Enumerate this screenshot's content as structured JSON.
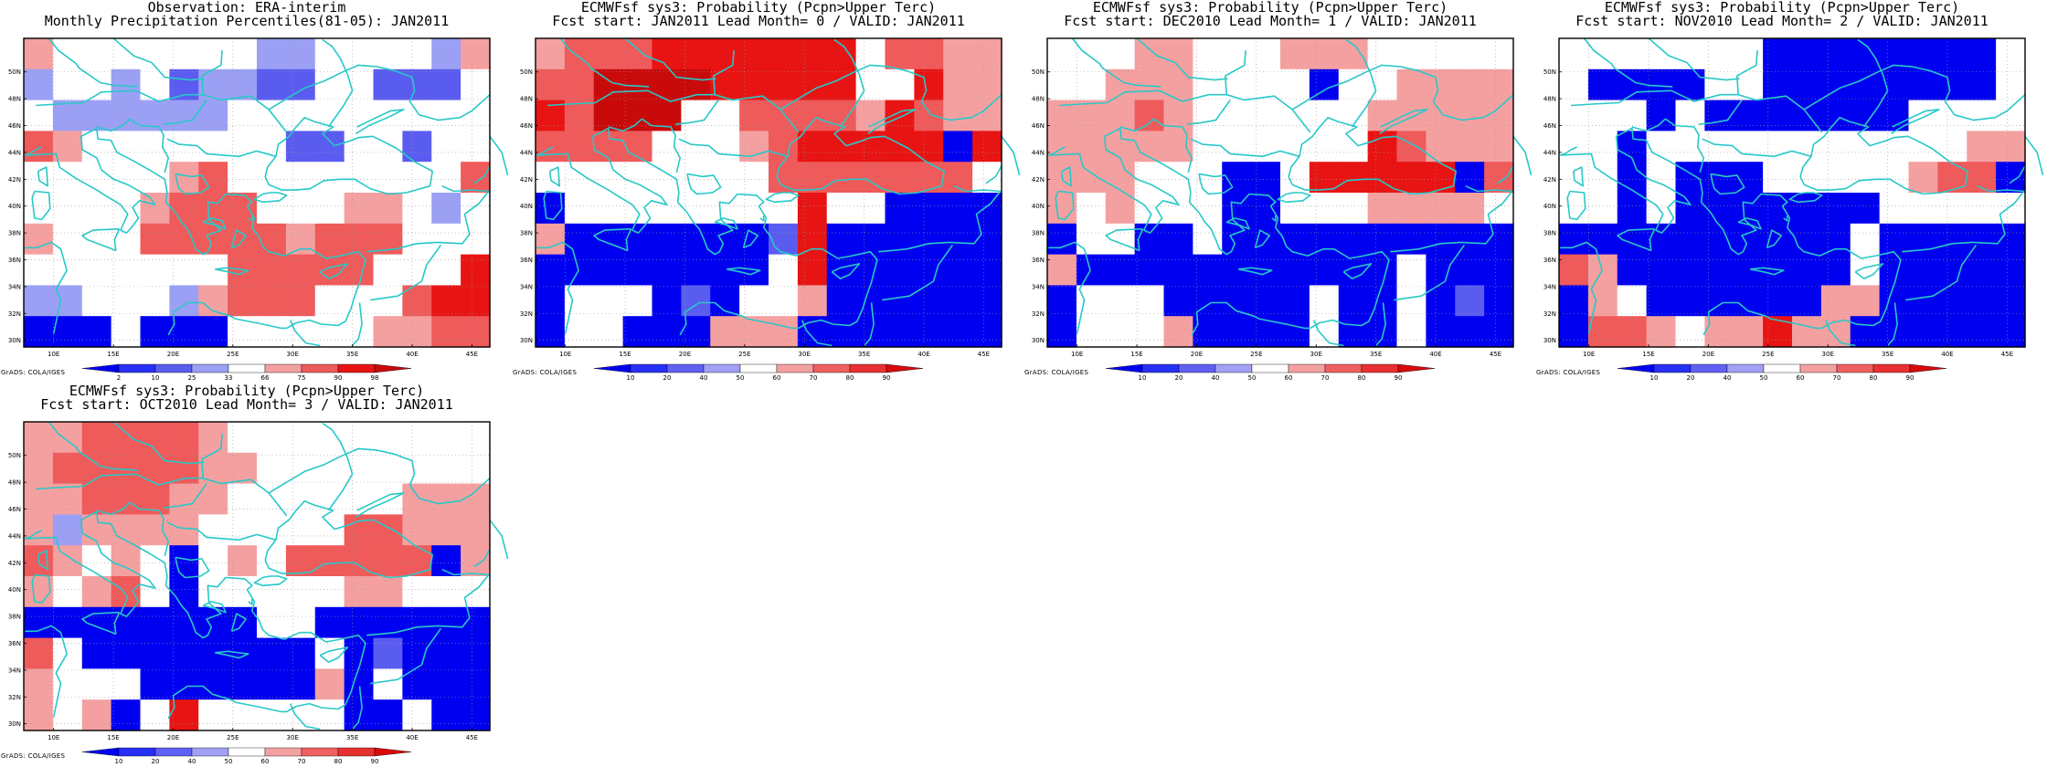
{
  "panels": [
    {
      "title_line1": "Observation: ERA-interim",
      "title_line2": "Monthly Precipitation Percentiles(81-05): JAN2011",
      "credit": "GrADS: COLA/IGES",
      "colorbar_ticks": [
        "2",
        "10",
        "25",
        "33",
        "66",
        "75",
        "90",
        "98"
      ],
      "grid": [
        [
          "r1",
          "w",
          "w",
          "w",
          "w",
          "w",
          "w",
          "w",
          "b1",
          "b1",
          "w",
          "w",
          "w",
          "w",
          "b1",
          "r1"
        ],
        [
          "b1",
          "w",
          "w",
          "b1",
          "w",
          "b2",
          "b1",
          "b1",
          "b2",
          "b2",
          "w",
          "w",
          "b2",
          "b2",
          "b2",
          "w"
        ],
        [
          "w",
          "b1",
          "b1",
          "b1",
          "b1",
          "b1",
          "b1",
          "w",
          "w",
          "w",
          "w",
          "w",
          "w",
          "w",
          "w",
          "w"
        ],
        [
          "r2",
          "r1",
          "w",
          "w",
          "w",
          "w",
          "w",
          "w",
          "w",
          "b2",
          "b2",
          "w",
          "w",
          "b2",
          "w",
          "w"
        ],
        [
          "w",
          "w",
          "w",
          "w",
          "w",
          "r1",
          "r2",
          "w",
          "w",
          "w",
          "w",
          "w",
          "w",
          "w",
          "w",
          "r2"
        ],
        [
          "w",
          "w",
          "w",
          "w",
          "r1",
          "r2",
          "r2",
          "r2",
          "w",
          "w",
          "w",
          "r1",
          "r1",
          "w",
          "b1",
          "w"
        ],
        [
          "r1",
          "w",
          "w",
          "w",
          "r2",
          "r2",
          "r2",
          "r2",
          "r2",
          "r1",
          "r2",
          "r2",
          "r2",
          "w",
          "w",
          "w"
        ],
        [
          "w",
          "w",
          "w",
          "w",
          "w",
          "w",
          "w",
          "r2",
          "r2",
          "r2",
          "r2",
          "r2",
          "w",
          "w",
          "w",
          "r3"
        ],
        [
          "b1",
          "b1",
          "w",
          "w",
          "w",
          "b1",
          "r1",
          "r2",
          "r2",
          "r2",
          "w",
          "w",
          "w",
          "r2",
          "r3",
          "r3"
        ],
        [
          "b3",
          "b3",
          "b3",
          "w",
          "b3",
          "b3",
          "b3",
          "w",
          "w",
          "w",
          "w",
          "w",
          "r1",
          "r1",
          "r2",
          "r2"
        ]
      ]
    },
    {
      "title_line1": "ECMWFsf sys3: Probability (Pcpn>Upper Terc)",
      "title_line2": "Fcst start: JAN2011   Lead Month= 0 / VALID: JAN2011",
      "credit": "GrADS: COLA/IGES",
      "colorbar_ticks": [
        "10",
        "20",
        "40",
        "50",
        "60",
        "70",
        "80",
        "90"
      ],
      "grid": [
        [
          "r1",
          "r2",
          "r2",
          "r2",
          "r3",
          "r3",
          "r3",
          "r3",
          "r3",
          "r3",
          "r3",
          "w",
          "r2",
          "r2",
          "r1",
          "r1"
        ],
        [
          "r2",
          "r2",
          "r4",
          "r4",
          "r4",
          "r4",
          "r3",
          "r3",
          "r3",
          "r3",
          "r3",
          "w",
          "w",
          "r3",
          "r1",
          "r1"
        ],
        [
          "r3",
          "r2",
          "r4",
          "r4",
          "r4",
          "w",
          "w",
          "r2",
          "r2",
          "r2",
          "r2",
          "r1",
          "r3",
          "r2",
          "r1",
          "r1"
        ],
        [
          "r2",
          "r2",
          "r2",
          "r2",
          "w",
          "w",
          "w",
          "r1",
          "r2",
          "r3",
          "r3",
          "r3",
          "r3",
          "r3",
          "b3",
          "r3"
        ],
        [
          "w",
          "w",
          "w",
          "w",
          "w",
          "w",
          "w",
          "w",
          "r2",
          "r2",
          "r2",
          "r2",
          "r2",
          "r2",
          "r2",
          "w"
        ],
        [
          "b3",
          "w",
          "w",
          "w",
          "w",
          "w",
          "w",
          "w",
          "w",
          "r3",
          "w",
          "w",
          "b3",
          "b3",
          "b3",
          "b3"
        ],
        [
          "r1",
          "b3",
          "b3",
          "b3",
          "b3",
          "b3",
          "b3",
          "b3",
          "b2",
          "r3",
          "b3",
          "b3",
          "b3",
          "b3",
          "b3",
          "b3"
        ],
        [
          "b3",
          "b3",
          "b3",
          "b3",
          "b3",
          "b3",
          "b3",
          "b3",
          "w",
          "r3",
          "b3",
          "b3",
          "b3",
          "b3",
          "b3",
          "b3"
        ],
        [
          "b3",
          "w",
          "w",
          "w",
          "b3",
          "b2",
          "b3",
          "w",
          "w",
          "r1",
          "b3",
          "b3",
          "b3",
          "b3",
          "b3",
          "b3"
        ],
        [
          "b3",
          "w",
          "w",
          "b3",
          "b3",
          "b3",
          "r1",
          "r1",
          "r1",
          "b3",
          "b3",
          "b3",
          "b3",
          "b3",
          "b3",
          "b3"
        ]
      ]
    },
    {
      "title_line1": "ECMWFsf sys3: Probability (Pcpn>Upper Terc)",
      "title_line2": "Fcst start: DEC2010   Lead Month= 1 / VALID: JAN2011",
      "credit": "GrADS: COLA/IGES",
      "colorbar_ticks": [
        "10",
        "20",
        "40",
        "50",
        "60",
        "70",
        "80",
        "90"
      ],
      "grid": [
        [
          "w",
          "w",
          "w",
          "r1",
          "r1",
          "w",
          "w",
          "w",
          "r1",
          "r1",
          "r1",
          "w",
          "w",
          "w",
          "w",
          "w"
        ],
        [
          "w",
          "w",
          "r1",
          "r1",
          "r1",
          "w",
          "w",
          "w",
          "w",
          "b3",
          "w",
          "w",
          "r1",
          "r1",
          "r1",
          "r1"
        ],
        [
          "r1",
          "r1",
          "r1",
          "r2",
          "r1",
          "w",
          "w",
          "w",
          "w",
          "w",
          "w",
          "r1",
          "r1",
          "r1",
          "r1",
          "r1"
        ],
        [
          "r1",
          "r1",
          "r1",
          "r1",
          "r1",
          "w",
          "w",
          "w",
          "w",
          "w",
          "w",
          "r3",
          "r2",
          "r1",
          "r1",
          "r1"
        ],
        [
          "r1",
          "r1",
          "r1",
          "w",
          "w",
          "w",
          "b3",
          "b3",
          "w",
          "r3",
          "r3",
          "r3",
          "r3",
          "r3",
          "b3",
          "r2"
        ],
        [
          "r1",
          "w",
          "r1",
          "w",
          "w",
          "w",
          "b3",
          "b3",
          "w",
          "w",
          "w",
          "r1",
          "r1",
          "r1",
          "r1",
          "w"
        ],
        [
          "b3",
          "w",
          "w",
          "b3",
          "b3",
          "w",
          "b3",
          "b3",
          "b3",
          "b3",
          "b3",
          "b3",
          "b3",
          "b3",
          "b3",
          "b3"
        ],
        [
          "r1",
          "b3",
          "b3",
          "b3",
          "b3",
          "b3",
          "b3",
          "b3",
          "b3",
          "b3",
          "b3",
          "b3",
          "w",
          "b3",
          "b3",
          "b3"
        ],
        [
          "b3",
          "w",
          "w",
          "w",
          "b3",
          "b3",
          "b3",
          "b3",
          "b3",
          "w",
          "b3",
          "b3",
          "w",
          "b3",
          "b2",
          "b3"
        ],
        [
          "b3",
          "w",
          "w",
          "w",
          "r1",
          "b3",
          "b3",
          "b3",
          "b3",
          "w",
          "b3",
          "b3",
          "w",
          "b3",
          "b3",
          "b3"
        ]
      ]
    },
    {
      "title_line1": "ECMWFsf sys3: Probability (Pcpn>Upper Terc)",
      "title_line2": "Fcst start: NOV2010   Lead Month= 2 / VALID: JAN2011",
      "credit": "GrADS: COLA/IGES",
      "colorbar_ticks": [
        "10",
        "20",
        "40",
        "50",
        "60",
        "70",
        "80",
        "90"
      ],
      "grid": [
        [
          "w",
          "w",
          "w",
          "w",
          "w",
          "w",
          "w",
          "b3",
          "b3",
          "b3",
          "b3",
          "b3",
          "b3",
          "b3",
          "b3",
          "w"
        ],
        [
          "w",
          "b3",
          "b3",
          "b3",
          "b3",
          "w",
          "w",
          "b3",
          "b3",
          "b3",
          "b3",
          "b3",
          "b3",
          "b3",
          "b3",
          "w"
        ],
        [
          "w",
          "w",
          "w",
          "b3",
          "w",
          "b3",
          "b3",
          "b3",
          "b3",
          "b3",
          "b3",
          "b3",
          "w",
          "w",
          "w",
          "w"
        ],
        [
          "w",
          "w",
          "b3",
          "w",
          "w",
          "w",
          "w",
          "w",
          "w",
          "w",
          "w",
          "w",
          "w",
          "w",
          "r1",
          "r1"
        ],
        [
          "w",
          "w",
          "b3",
          "w",
          "b3",
          "b3",
          "b3",
          "w",
          "w",
          "w",
          "w",
          "w",
          "r1",
          "r2",
          "r2",
          "b3"
        ],
        [
          "w",
          "w",
          "b3",
          "w",
          "b3",
          "b3",
          "b3",
          "b3",
          "b3",
          "b3",
          "b3",
          "w",
          "w",
          "w",
          "w",
          "w"
        ],
        [
          "b3",
          "b3",
          "b3",
          "b3",
          "b3",
          "b3",
          "b3",
          "b3",
          "b3",
          "b3",
          "w",
          "b3",
          "b3",
          "b3",
          "b3",
          "b3"
        ],
        [
          "r2",
          "r1",
          "b3",
          "b3",
          "b3",
          "b3",
          "b3",
          "b3",
          "b3",
          "b3",
          "w",
          "b3",
          "b3",
          "b3",
          "b3",
          "b3"
        ],
        [
          "b3",
          "r1",
          "w",
          "b3",
          "b3",
          "b3",
          "b3",
          "b3",
          "b3",
          "r1",
          "r1",
          "b3",
          "b3",
          "b3",
          "b3",
          "b3"
        ],
        [
          "b3",
          "r2",
          "r2",
          "r1",
          "w",
          "r1",
          "r1",
          "r3",
          "r1",
          "r1",
          "b3",
          "b3",
          "b3",
          "b3",
          "b3",
          "b3"
        ]
      ]
    },
    {
      "title_line1": "ECMWFsf sys3: Probability (Pcpn>Upper Terc)",
      "title_line2": "Fcst start: OCT2010   Lead Month= 3 / VALID: JAN2011",
      "credit": "GrADS: COLA/IGES",
      "colorbar_ticks": [
        "10",
        "20",
        "40",
        "50",
        "60",
        "70",
        "80",
        "90"
      ],
      "grid": [
        [
          "r1",
          "r1",
          "r2",
          "r2",
          "r2",
          "r2",
          "r1",
          "w",
          "w",
          "w",
          "w",
          "w",
          "w",
          "w",
          "w",
          "w"
        ],
        [
          "r1",
          "r2",
          "r2",
          "r2",
          "r2",
          "r2",
          "r1",
          "r1",
          "w",
          "w",
          "w",
          "w",
          "w",
          "w",
          "w",
          "w"
        ],
        [
          "r1",
          "r1",
          "r2",
          "r2",
          "r2",
          "r1",
          "r1",
          "w",
          "w",
          "w",
          "w",
          "w",
          "w",
          "r1",
          "r1",
          "r1"
        ],
        [
          "r1",
          "b1",
          "r1",
          "r1",
          "r1",
          "r1",
          "w",
          "w",
          "w",
          "w",
          "w",
          "r2",
          "r2",
          "r1",
          "r1",
          "r1"
        ],
        [
          "r2",
          "r1",
          "w",
          "r1",
          "w",
          "b3",
          "w",
          "r1",
          "w",
          "r2",
          "r2",
          "r2",
          "r2",
          "r2",
          "b3",
          "r1"
        ],
        [
          "r1",
          "w",
          "r1",
          "r2",
          "w",
          "b3",
          "w",
          "w",
          "w",
          "w",
          "w",
          "r1",
          "r1",
          "w",
          "w",
          "w"
        ],
        [
          "b3",
          "b3",
          "b3",
          "b3",
          "b3",
          "b3",
          "b3",
          "b3",
          "w",
          "w",
          "b3",
          "b3",
          "b3",
          "b3",
          "b3",
          "b3"
        ],
        [
          "r2",
          "w",
          "b3",
          "b3",
          "b3",
          "b3",
          "b3",
          "b3",
          "b3",
          "b3",
          "w",
          "b3",
          "b2",
          "b3",
          "b3",
          "b3"
        ],
        [
          "r1",
          "w",
          "w",
          "w",
          "b3",
          "b3",
          "b3",
          "b3",
          "b3",
          "b3",
          "r1",
          "b3",
          "w",
          "b3",
          "b3",
          "b3"
        ],
        [
          "r1",
          "w",
          "r1",
          "b3",
          "w",
          "r3",
          "w",
          "w",
          "w",
          "w",
          "w",
          "b3",
          "b3",
          "w",
          "b3",
          "b3"
        ]
      ]
    }
  ],
  "map_axes": {
    "lat_labels": [
      "50N",
      "48N",
      "46N",
      "44N",
      "42N",
      "40N",
      "38N",
      "36N",
      "34N",
      "32N",
      "30N"
    ],
    "lon_labels": [
      "10E",
      "15E",
      "20E",
      "25E",
      "30E",
      "35E",
      "40E",
      "45E"
    ]
  },
  "palette": {
    "w": "#ffffff",
    "b1": "#9ba0f5",
    "b2": "#5a5cf0",
    "b3": "#0000f0",
    "r1": "#f5a0a0",
    "r2": "#ef5a5a",
    "r3": "#e81414",
    "r4": "#c80a0a",
    "coast": "#28c8c8",
    "scale_obs": [
      "#0000f0",
      "#2830f5",
      "#5a5cf0",
      "#9ba0f5",
      "#ffffff",
      "#f5a0a0",
      "#ef5a5a",
      "#e81414",
      "#c80a0a"
    ],
    "scale_prob": [
      "#0000f0",
      "#2830f5",
      "#6060f5",
      "#a0a0f5",
      "#ffffff",
      "#f5a0a0",
      "#ef6060",
      "#e83030",
      "#d80a0a"
    ]
  }
}
